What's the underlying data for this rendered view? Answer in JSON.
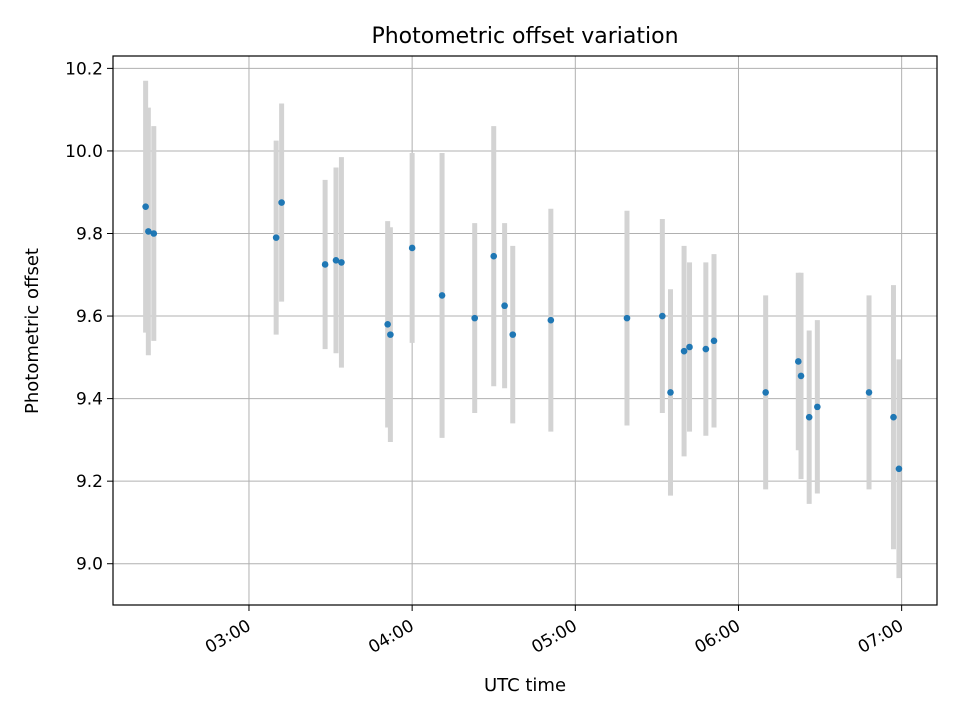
{
  "chart_data": {
    "type": "scatter",
    "title": "Photometric offset variation",
    "xlabel": "UTC time",
    "ylabel": "Photometric offset",
    "x_ticks": [
      "03:00",
      "04:00",
      "05:00",
      "06:00",
      "07:00"
    ],
    "y_ticks": [
      "9.0",
      "9.2",
      "9.4",
      "9.6",
      "9.8",
      "10.0",
      "10.2"
    ],
    "xlim": [
      "02:10",
      "07:13"
    ],
    "ylim": [
      8.9,
      10.23
    ],
    "grid": true,
    "marker_color": "#1f77b4",
    "errorbar_color": "#d3d3d3",
    "points": [
      {
        "x": "02:22",
        "y": 9.865,
        "err": 0.305
      },
      {
        "x": "02:23",
        "y": 9.805,
        "err": 0.3
      },
      {
        "x": "02:25",
        "y": 9.8,
        "err": 0.26
      },
      {
        "x": "03:10",
        "y": 9.79,
        "err": 0.235
      },
      {
        "x": "03:12",
        "y": 9.875,
        "err": 0.24
      },
      {
        "x": "03:28",
        "y": 9.725,
        "err": 0.205
      },
      {
        "x": "03:32",
        "y": 9.735,
        "err": 0.225
      },
      {
        "x": "03:34",
        "y": 9.73,
        "err": 0.255
      },
      {
        "x": "03:51",
        "y": 9.58,
        "err": 0.25
      },
      {
        "x": "03:52",
        "y": 9.555,
        "err": 0.26
      },
      {
        "x": "04:00",
        "y": 9.765,
        "err": 0.23
      },
      {
        "x": "04:11",
        "y": 9.65,
        "err": 0.345
      },
      {
        "x": "04:23",
        "y": 9.595,
        "err": 0.23
      },
      {
        "x": "04:30",
        "y": 9.745,
        "err": 0.315
      },
      {
        "x": "04:34",
        "y": 9.625,
        "err": 0.2
      },
      {
        "x": "04:37",
        "y": 9.555,
        "err": 0.215
      },
      {
        "x": "04:51",
        "y": 9.59,
        "err": 0.27
      },
      {
        "x": "05:19",
        "y": 9.595,
        "err": 0.26
      },
      {
        "x": "05:32",
        "y": 9.6,
        "err": 0.235
      },
      {
        "x": "05:35",
        "y": 9.415,
        "err": 0.25
      },
      {
        "x": "05:40",
        "y": 9.515,
        "err": 0.255
      },
      {
        "x": "05:42",
        "y": 9.525,
        "err": 0.205
      },
      {
        "x": "05:48",
        "y": 9.52,
        "err": 0.21
      },
      {
        "x": "05:51",
        "y": 9.54,
        "err": 0.21
      },
      {
        "x": "06:10",
        "y": 9.415,
        "err": 0.235
      },
      {
        "x": "06:22",
        "y": 9.49,
        "err": 0.215
      },
      {
        "x": "06:23",
        "y": 9.455,
        "err": 0.25
      },
      {
        "x": "06:26",
        "y": 9.355,
        "err": 0.21
      },
      {
        "x": "06:29",
        "y": 9.38,
        "err": 0.21
      },
      {
        "x": "06:48",
        "y": 9.415,
        "err": 0.235
      },
      {
        "x": "06:57",
        "y": 9.355,
        "err": 0.32
      },
      {
        "x": "06:59",
        "y": 9.23,
        "err": 0.265
      }
    ]
  }
}
